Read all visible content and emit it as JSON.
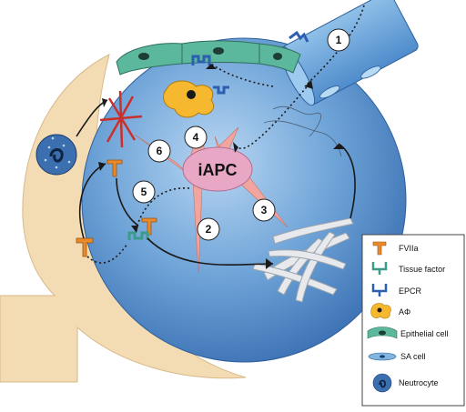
{
  "center_label": "iAPC",
  "steps": [
    {
      "n": "1"
    },
    {
      "n": "2"
    },
    {
      "n": "3"
    },
    {
      "n": "4"
    },
    {
      "n": "5"
    },
    {
      "n": "6"
    }
  ],
  "legend": [
    {
      "key": "fviia",
      "label": "FVIIa",
      "color": "#e8892b"
    },
    {
      "key": "tissue-factor",
      "label": "Tissue factor",
      "color": "#3e9a8a"
    },
    {
      "key": "epcr",
      "label": "EPCR",
      "color": "#2c5fb0"
    },
    {
      "key": "macrophage",
      "label": "AΦ",
      "color": "#f5b82e"
    },
    {
      "key": "epithelial-cell",
      "label": "Epithelial cell",
      "color": "#4aa890"
    },
    {
      "key": "sa-cell",
      "label": "SA cell",
      "color": "#7fb7e0"
    },
    {
      "key": "neutrocyte",
      "label": "Neutrocyte",
      "color": "#3b6fb0"
    }
  ]
}
